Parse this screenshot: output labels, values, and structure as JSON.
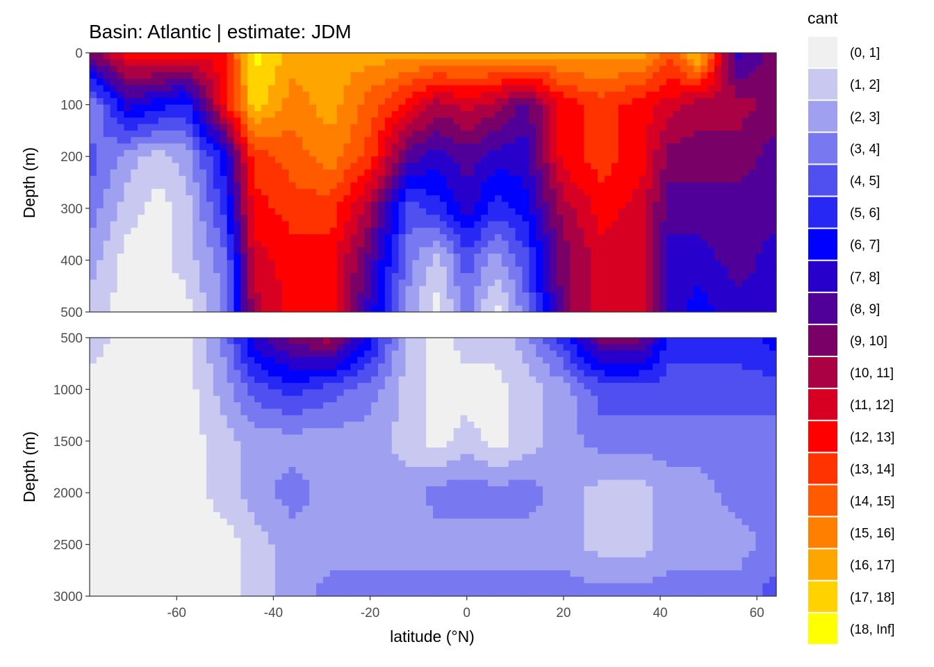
{
  "chart_data": {
    "type": "heatmap",
    "subtype": "filled-contour",
    "title": "Basin: Atlantic | estimate: JDM",
    "xlabel": "latitude (°N)",
    "ylabel": "Depth (m)",
    "xlim": [
      -78,
      64
    ],
    "x_ticks": [
      -60,
      -40,
      -20,
      0,
      20,
      40,
      60
    ],
    "x_tick_labels": [
      "-60",
      "-40",
      "-20",
      "0",
      "20",
      "40",
      "60"
    ],
    "panels": [
      {
        "name": "upper",
        "ylim": [
          0,
          500
        ],
        "y_reversed": true,
        "y_ticks": [
          0,
          100,
          200,
          300,
          400,
          500
        ],
        "y_tick_labels": [
          "0",
          "100",
          "200",
          "300",
          "400",
          "500"
        ]
      },
      {
        "name": "lower",
        "ylim": [
          500,
          3000
        ],
        "y_reversed": true,
        "y_ticks": [
          500,
          1000,
          1500,
          2000,
          2500,
          3000
        ],
        "y_tick_labels": [
          "500",
          "1000",
          "1500",
          "2000",
          "2500",
          "3000"
        ]
      }
    ],
    "legend": {
      "title": "cant",
      "position": "right",
      "bins": [
        {
          "label": "(0, 1]",
          "color": "#f0f0f0"
        },
        {
          "label": "(1, 2]",
          "color": "#c8c8f0"
        },
        {
          "label": "(2, 3]",
          "color": "#a0a0f0"
        },
        {
          "label": "(3, 4]",
          "color": "#7878f0"
        },
        {
          "label": "(4, 5]",
          "color": "#5050f0"
        },
        {
          "label": "(5, 6]",
          "color": "#2828f5"
        },
        {
          "label": "(6, 7]",
          "color": "#0000ff"
        },
        {
          "label": "(7, 8]",
          "color": "#2800cc"
        },
        {
          "label": "(8, 9]",
          "color": "#500099"
        },
        {
          "label": "(9, 10]",
          "color": "#780066"
        },
        {
          "label": "(10, 11]",
          "color": "#aa0044"
        },
        {
          "label": "(11, 12]",
          "color": "#d80022"
        },
        {
          "label": "(12, 13]",
          "color": "#ff0000"
        },
        {
          "label": "(13, 14]",
          "color": "#ff3300"
        },
        {
          "label": "(14, 15]",
          "color": "#ff5a00"
        },
        {
          "label": "(15, 16]",
          "color": "#ff8000"
        },
        {
          "label": "(16, 17]",
          "color": "#ffa500"
        },
        {
          "label": "(17, 18]",
          "color": "#ffd200"
        },
        {
          "label": "(18, Inf]",
          "color": "#ffff00"
        }
      ]
    },
    "contour_samples": {
      "upper": {
        "lats": [
          -78,
          -70,
          -64,
          -58,
          -50,
          -44,
          -36,
          -28,
          -20,
          -12,
          -6,
          0,
          6,
          12,
          20,
          28,
          36,
          42,
          48,
          56,
          64
        ],
        "depths": [
          0,
          100,
          200,
          300,
          400,
          500
        ],
        "bins": [
          [
            9,
            12,
            12,
            12,
            12,
            18,
            16,
            16,
            16,
            16,
            16,
            16,
            16,
            16,
            16,
            16,
            16,
            14,
            17,
            7,
            9
          ],
          [
            2,
            7,
            6,
            5,
            12,
            17,
            15,
            16,
            14,
            12,
            10,
            11,
            10,
            8,
            12,
            13,
            12,
            11,
            10,
            10,
            9
          ],
          [
            4,
            2,
            1,
            2,
            6,
            13,
            14,
            15,
            13,
            8,
            7,
            8,
            7,
            7,
            12,
            13,
            12,
            9,
            9,
            9,
            8
          ],
          [
            3,
            1,
            0,
            1,
            5,
            12,
            13,
            13,
            10,
            4,
            5,
            7,
            5,
            6,
            10,
            12,
            11,
            8,
            8,
            8,
            8
          ],
          [
            2,
            0,
            0,
            1,
            3,
            11,
            12,
            12,
            8,
            3,
            1,
            4,
            2,
            4,
            9,
            11,
            11,
            7,
            7,
            8,
            7
          ],
          [
            1,
            0,
            0,
            0,
            3,
            10,
            12,
            12,
            7,
            2,
            0,
            3,
            0,
            3,
            9,
            11,
            11,
            7,
            6,
            7,
            7
          ]
        ]
      },
      "lower": {
        "lats": [
          -78,
          -70,
          -64,
          -58,
          -50,
          -44,
          -36,
          -28,
          -20,
          -12,
          -6,
          0,
          6,
          12,
          20,
          28,
          36,
          42,
          48,
          56,
          64
        ],
        "depths": [
          500,
          1000,
          1500,
          2000,
          2500,
          3000
        ],
        "bins": [
          [
            1,
            0,
            0,
            0,
            3,
            7,
            9,
            10,
            6,
            1,
            0,
            1,
            1,
            2,
            5,
            9,
            9,
            5,
            5,
            5,
            6
          ],
          [
            0,
            0,
            0,
            0,
            2,
            4,
            5,
            4,
            3,
            1,
            0,
            0,
            0,
            1,
            2,
            4,
            4,
            4,
            4,
            4,
            4
          ],
          [
            0,
            0,
            0,
            0,
            1,
            2,
            2,
            2,
            2,
            1,
            0,
            1,
            0,
            1,
            2,
            3,
            3,
            3,
            3,
            3,
            3
          ],
          [
            0,
            0,
            0,
            0,
            1,
            2,
            3,
            2,
            2,
            2,
            3,
            3,
            3,
            3,
            2,
            1,
            1,
            2,
            2,
            3,
            3
          ],
          [
            0,
            0,
            0,
            0,
            0,
            1,
            2,
            2,
            2,
            2,
            2,
            2,
            2,
            2,
            2,
            1,
            1,
            2,
            2,
            2,
            3
          ],
          [
            0,
            0,
            0,
            0,
            0,
            1,
            2,
            3,
            3,
            3,
            3,
            3,
            3,
            3,
            3,
            3,
            3,
            3,
            3,
            3,
            4
          ]
        ]
      }
    }
  }
}
